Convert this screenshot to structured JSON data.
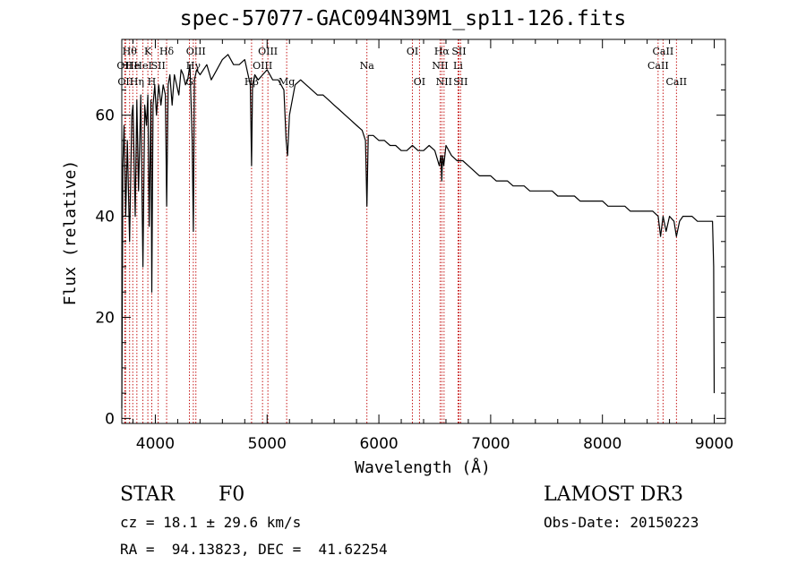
{
  "chart_data": {
    "type": "line",
    "title": "spec-57077-GAC094N39M1_sp11-126.fits",
    "xlabel": "Wavelength (Å)",
    "ylabel": "Flux (relative)",
    "xlim": [
      3700,
      9100
    ],
    "ylim": [
      -1,
      75
    ],
    "xticks": [
      4000,
      5000,
      6000,
      7000,
      8000,
      9000
    ],
    "yticks": [
      0,
      20,
      40,
      60
    ],
    "series": [
      {
        "name": "spectrum",
        "x": [
          3700,
          3710,
          3720,
          3735,
          3750,
          3770,
          3790,
          3800,
          3820,
          3835,
          3850,
          3870,
          3889,
          3905,
          3920,
          3933,
          3945,
          3960,
          3968,
          3980,
          3995,
          4010,
          4030,
          4050,
          4070,
          4090,
          4101,
          4115,
          4130,
          4150,
          4170,
          4190,
          4210,
          4230,
          4250,
          4270,
          4290,
          4310,
          4330,
          4340,
          4350,
          4370,
          4400,
          4430,
          4460,
          4500,
          4550,
          4600,
          4650,
          4700,
          4750,
          4800,
          4830,
          4850,
          4861,
          4870,
          4890,
          4920,
          4960,
          5000,
          5050,
          5100,
          5150,
          5170,
          5183,
          5200,
          5250,
          5300,
          5350,
          5400,
          5450,
          5500,
          5550,
          5600,
          5650,
          5700,
          5750,
          5800,
          5850,
          5880,
          5893,
          5905,
          5950,
          6000,
          6050,
          6100,
          6150,
          6200,
          6250,
          6300,
          6350,
          6400,
          6450,
          6500,
          6540,
          6555,
          6563,
          6570,
          6580,
          6600,
          6650,
          6700,
          6750,
          6800,
          6850,
          6900,
          6950,
          7000,
          7050,
          7100,
          7150,
          7200,
          7250,
          7300,
          7350,
          7400,
          7450,
          7500,
          7550,
          7600,
          7650,
          7700,
          7750,
          7800,
          7850,
          7900,
          7950,
          8000,
          8050,
          8100,
          8150,
          8200,
          8250,
          8300,
          8350,
          8400,
          8450,
          8498,
          8520,
          8542,
          8570,
          8600,
          8640,
          8662,
          8690,
          8720,
          8750,
          8800,
          8850,
          8900,
          8950,
          8970,
          8985,
          8995,
          9000
        ],
        "values": [
          2,
          50,
          58,
          40,
          55,
          35,
          60,
          62,
          40,
          63,
          45,
          64,
          30,
          62,
          58,
          64,
          38,
          63,
          25,
          62,
          66,
          60,
          66,
          62,
          66,
          64,
          42,
          66,
          68,
          62,
          68,
          66,
          64,
          69,
          68,
          66,
          67,
          70,
          55,
          37,
          67,
          69,
          68,
          69,
          70,
          67,
          69,
          71,
          72,
          70,
          70,
          71,
          68,
          66,
          50,
          66,
          68,
          67,
          68,
          69,
          67,
          67,
          65,
          55,
          52,
          60,
          66,
          67,
          66,
          65,
          64,
          64,
          63,
          62,
          61,
          60,
          59,
          58,
          57,
          55,
          42,
          56,
          56,
          55,
          55,
          54,
          54,
          53,
          53,
          54,
          53,
          53,
          54,
          53,
          50,
          52,
          47,
          52,
          50,
          54,
          52,
          51,
          51,
          50,
          49,
          48,
          48,
          48,
          47,
          47,
          47,
          46,
          46,
          46,
          45,
          45,
          45,
          45,
          45,
          44,
          44,
          44,
          44,
          43,
          43,
          43,
          43,
          43,
          42,
          42,
          42,
          42,
          41,
          41,
          41,
          41,
          41,
          40,
          36,
          40,
          37,
          40,
          39,
          36,
          39,
          40,
          40,
          40,
          39,
          39,
          39,
          39,
          39,
          30,
          5
        ]
      }
    ],
    "line_markers": [
      {
        "wavelength": 3726,
        "label": "OII",
        "row": 2
      },
      {
        "wavelength": 3734,
        "label": "OII",
        "row": 3
      },
      {
        "wavelength": 3770,
        "label": "Hθ",
        "row": 1
      },
      {
        "wavelength": 3798,
        "label": "He",
        "row": 2
      },
      {
        "wavelength": 3835,
        "label": "Hη",
        "row": 3
      },
      {
        "wavelength": 3889,
        "label": "HeI",
        "row": 2
      },
      {
        "wavelength": 3933,
        "label": "K",
        "row": 1
      },
      {
        "wavelength": 3968,
        "label": "H",
        "row": 3
      },
      {
        "wavelength": 4026,
        "label": "SII",
        "row": 2
      },
      {
        "wavelength": 4101,
        "label": "Hδ",
        "row": 1
      },
      {
        "wavelength": 4305,
        "label": "G",
        "row": 3
      },
      {
        "wavelength": 4340,
        "label": "Hγ",
        "row": 2
      },
      {
        "wavelength": 4363,
        "label": "OIII",
        "row": 1
      },
      {
        "wavelength": 4861,
        "label": "Hβ",
        "row": 3
      },
      {
        "wavelength": 4959,
        "label": "OIII",
        "row": 2
      },
      {
        "wavelength": 5007,
        "label": "OIII",
        "row": 1
      },
      {
        "wavelength": 5175,
        "label": "Mg",
        "row": 3
      },
      {
        "wavelength": 5893,
        "label": "Na",
        "row": 2
      },
      {
        "wavelength": 6300,
        "label": "OI",
        "row": 1
      },
      {
        "wavelength": 6363,
        "label": "OI",
        "row": 3
      },
      {
        "wavelength": 6548,
        "label": "NII",
        "row": 2
      },
      {
        "wavelength": 6563,
        "label": "Hα",
        "row": 1
      },
      {
        "wavelength": 6583,
        "label": "NII",
        "row": 3
      },
      {
        "wavelength": 6708,
        "label": "Li",
        "row": 2
      },
      {
        "wavelength": 6716,
        "label": "SII",
        "row": 1
      },
      {
        "wavelength": 6731,
        "label": "SII",
        "row": 3
      },
      {
        "wavelength": 8498,
        "label": "CaII",
        "row": 2
      },
      {
        "wavelength": 8542,
        "label": "CaII",
        "row": 1
      },
      {
        "wavelength": 8662,
        "label": "CaII",
        "row": 3
      }
    ],
    "colors": {
      "spectrum": "#000000",
      "marker": "#c00000",
      "axis": "#000000"
    }
  },
  "info": {
    "class": "STAR",
    "subclass": "F0",
    "survey": "LAMOST DR3",
    "cz": "cz = 18.1 ± 29.6 km/s",
    "obs_date": "Obs-Date: 20150223",
    "coords": "RA =  94.13823, DEC =  41.62254"
  }
}
